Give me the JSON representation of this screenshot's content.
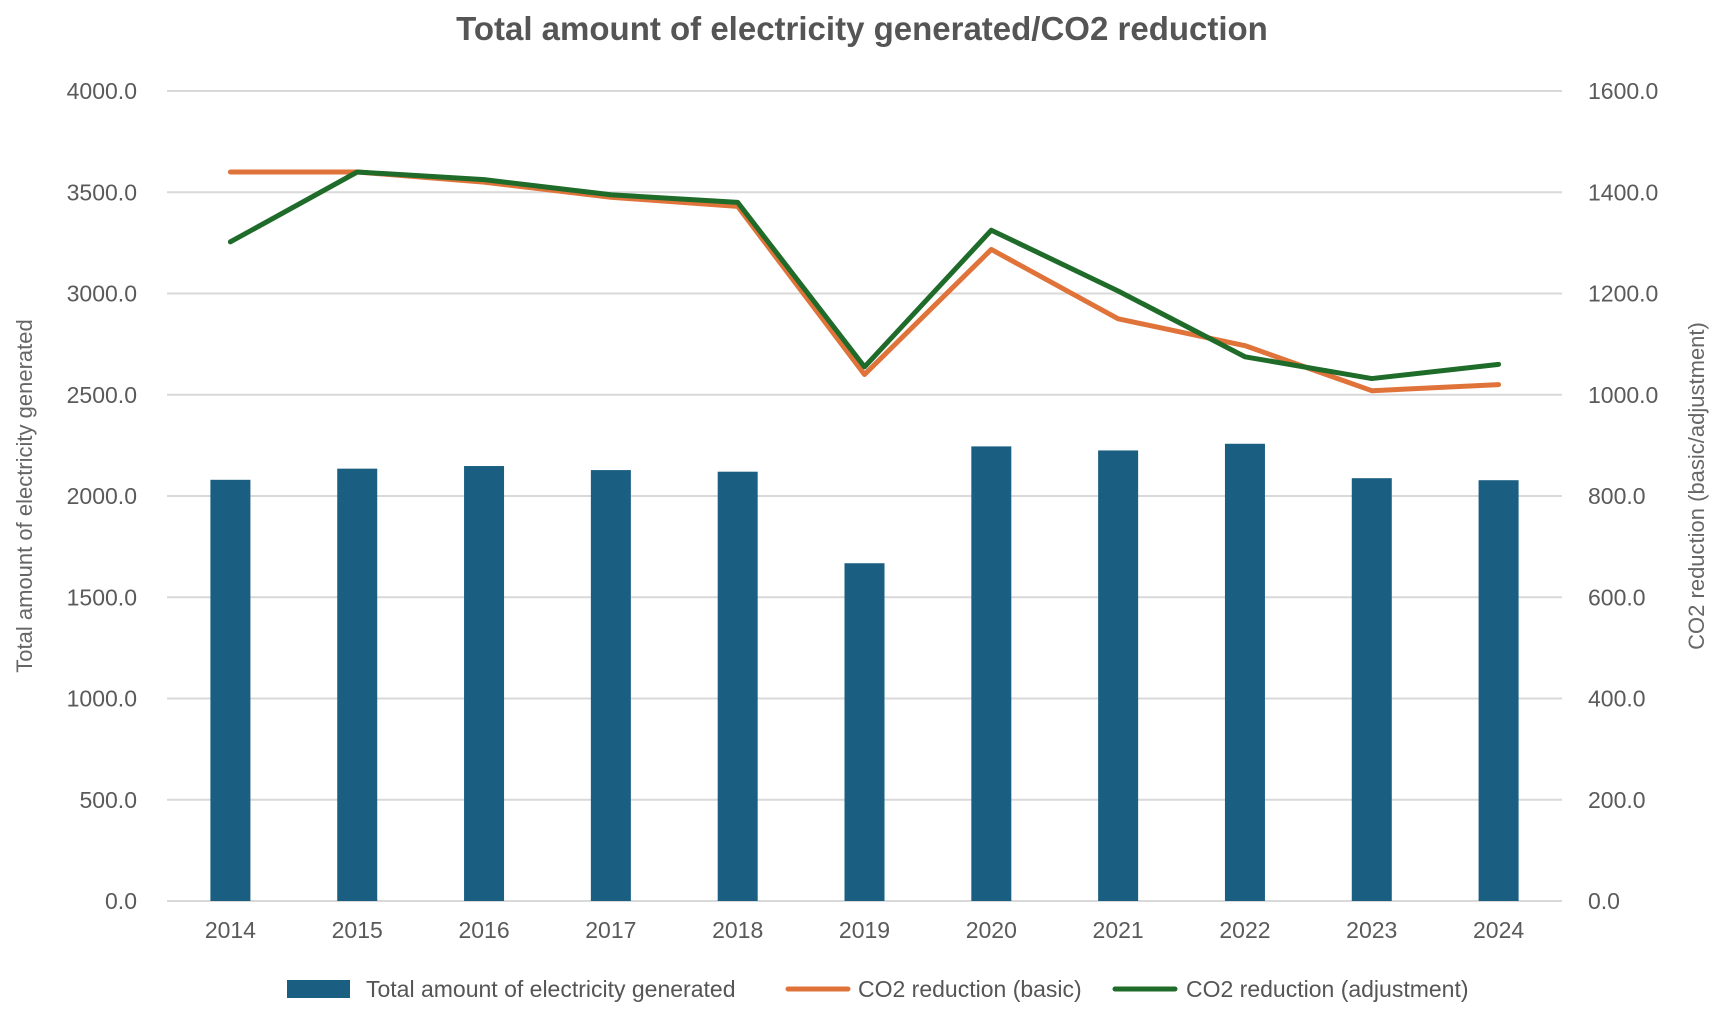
{
  "chart_data": {
    "type": "bar",
    "title": "Total amount of electricity generated/CO2 reduction",
    "categories": [
      "2014",
      "2015",
      "2016",
      "2017",
      "2018",
      "2019",
      "2020",
      "2021",
      "2022",
      "2023",
      "2024"
    ],
    "y_left": {
      "label": "Total amount of electricity generated",
      "range": [
        0,
        4000
      ],
      "ticks": [
        "0.0",
        "500.0",
        "1000.0",
        "1500.0",
        "2000.0",
        "2500.0",
        "3000.0",
        "3500.0",
        "4000.0"
      ]
    },
    "y_right": {
      "label": "CO2 reduction (basic/adjustment)",
      "range": [
        0,
        1600
      ],
      "ticks": [
        "0.0",
        "200.0",
        "400.0",
        "600.0",
        "800.0",
        "1000.0",
        "1200.0",
        "1400.0",
        "1600.0"
      ]
    },
    "grid": true,
    "legend_position": "bottom",
    "series": [
      {
        "name": "Total amount of electricity generated",
        "type": "bar",
        "axis": "left",
        "color": "#1a5f82",
        "values": [
          2080,
          2135,
          2148,
          2128,
          2120,
          1668,
          2245,
          2225,
          2258,
          2088,
          2078
        ]
      },
      {
        "name": "CO2 reduction (basic)",
        "type": "line",
        "axis": "right",
        "color": "#e0733a",
        "values": [
          1440,
          1440,
          1420,
          1390,
          1372,
          1040,
          1287,
          1150,
          1097,
          1008,
          1020
        ]
      },
      {
        "name": "CO2 reduction (adjustment)",
        "type": "line",
        "axis": "right",
        "color": "#1f6b2a",
        "values": [
          1302,
          1440,
          1425,
          1395,
          1380,
          1055,
          1325,
          1205,
          1075,
          1032,
          1060
        ]
      }
    ]
  }
}
